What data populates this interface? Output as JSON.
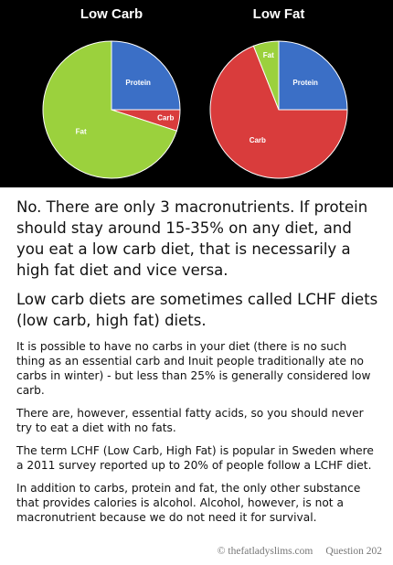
{
  "chart_data": [
    {
      "type": "pie",
      "title": "Low Carb",
      "categories": [
        "Protein",
        "Carb",
        "Fat"
      ],
      "values": [
        25,
        5,
        70
      ],
      "colors": [
        "#3b6fc6",
        "#d93c3c",
        "#9bd13d"
      ]
    },
    {
      "type": "pie",
      "title": "Low Fat",
      "categories": [
        "Protein",
        "Carb",
        "Fat"
      ],
      "values": [
        25,
        69,
        6
      ],
      "colors": [
        "#3b6fc6",
        "#d93c3c",
        "#9bd13d"
      ]
    }
  ],
  "paragraphs": [
    "No. There are only 3 macronutrients. If protein should stay around 15-35% on any diet, and you eat a low carb diet, that is necessarily a high fat diet and vice versa.",
    "Low carb diets are sometimes called LCHF diets (low carb, high fat) diets.",
    "It is possible to have no carbs in your diet (there is no such thing as an essential carb and Inuit people traditionally ate no carbs in winter) - but less than 25% is generally considered low carb.",
    "There are, however, essential fatty acids, so you should never try to eat a diet with no fats.",
    "The term LCHF (Low Carb, High Fat) is popular in Sweden where a 2011 survey reported up to 20% of people follow a LCHF diet.",
    "In addition to carbs, protein and fat, the only other substance that provides calories is alcohol.  Alcohol, however, is not a macronutrient because we do not need it for survival."
  ],
  "footer": {
    "source": "© thefatladyslims.com",
    "question": "Question 202"
  }
}
